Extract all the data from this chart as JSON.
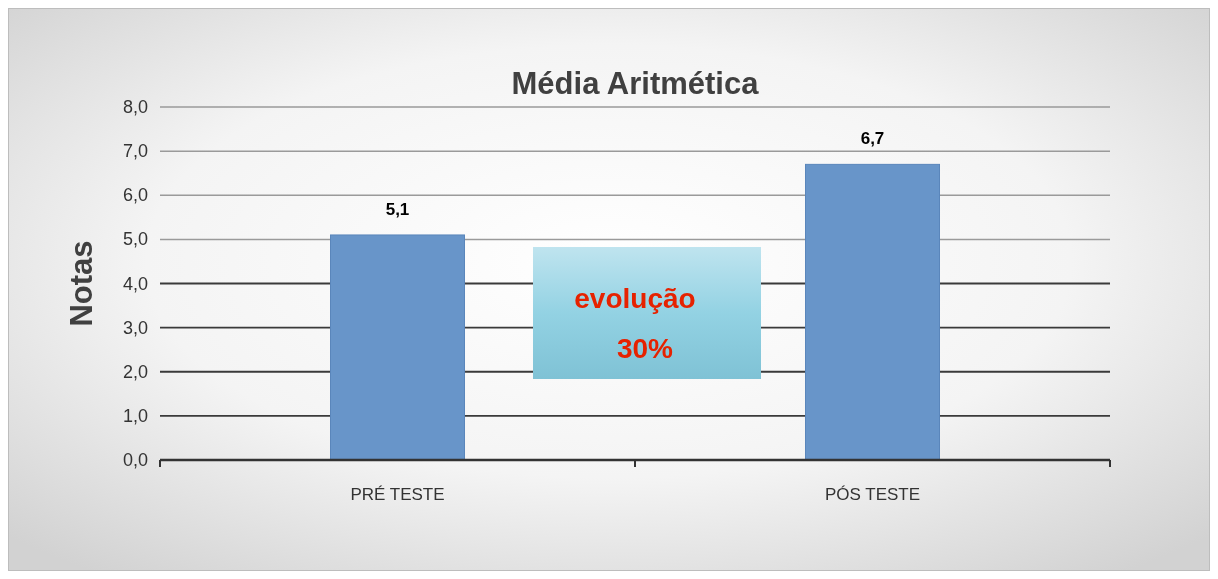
{
  "chart_data": {
    "type": "bar",
    "title": "Média Aritmética",
    "ylabel": "Notas",
    "categories": [
      "PRÉ TESTE",
      "PÓS TESTE"
    ],
    "values": [
      5.1,
      6.7
    ],
    "color": "#6895c9",
    "value_labels": [
      "5,1",
      "6,7"
    ],
    "ylim": [
      0,
      8
    ],
    "yticks": [
      {
        "value": 0,
        "label": "0,0"
      },
      {
        "value": 1,
        "label": "1,0"
      },
      {
        "value": 2,
        "label": "2,0"
      },
      {
        "value": 3,
        "label": "3,0"
      },
      {
        "value": 4,
        "label": "4,0"
      },
      {
        "value": 5,
        "label": "5,0"
      },
      {
        "value": 6,
        "label": "6,0"
      },
      {
        "value": 7,
        "label": "7,0"
      },
      {
        "value": 8,
        "label": "8,0"
      }
    ],
    "grid": "y",
    "annotations": [
      "evolução\n30%"
    ]
  }
}
